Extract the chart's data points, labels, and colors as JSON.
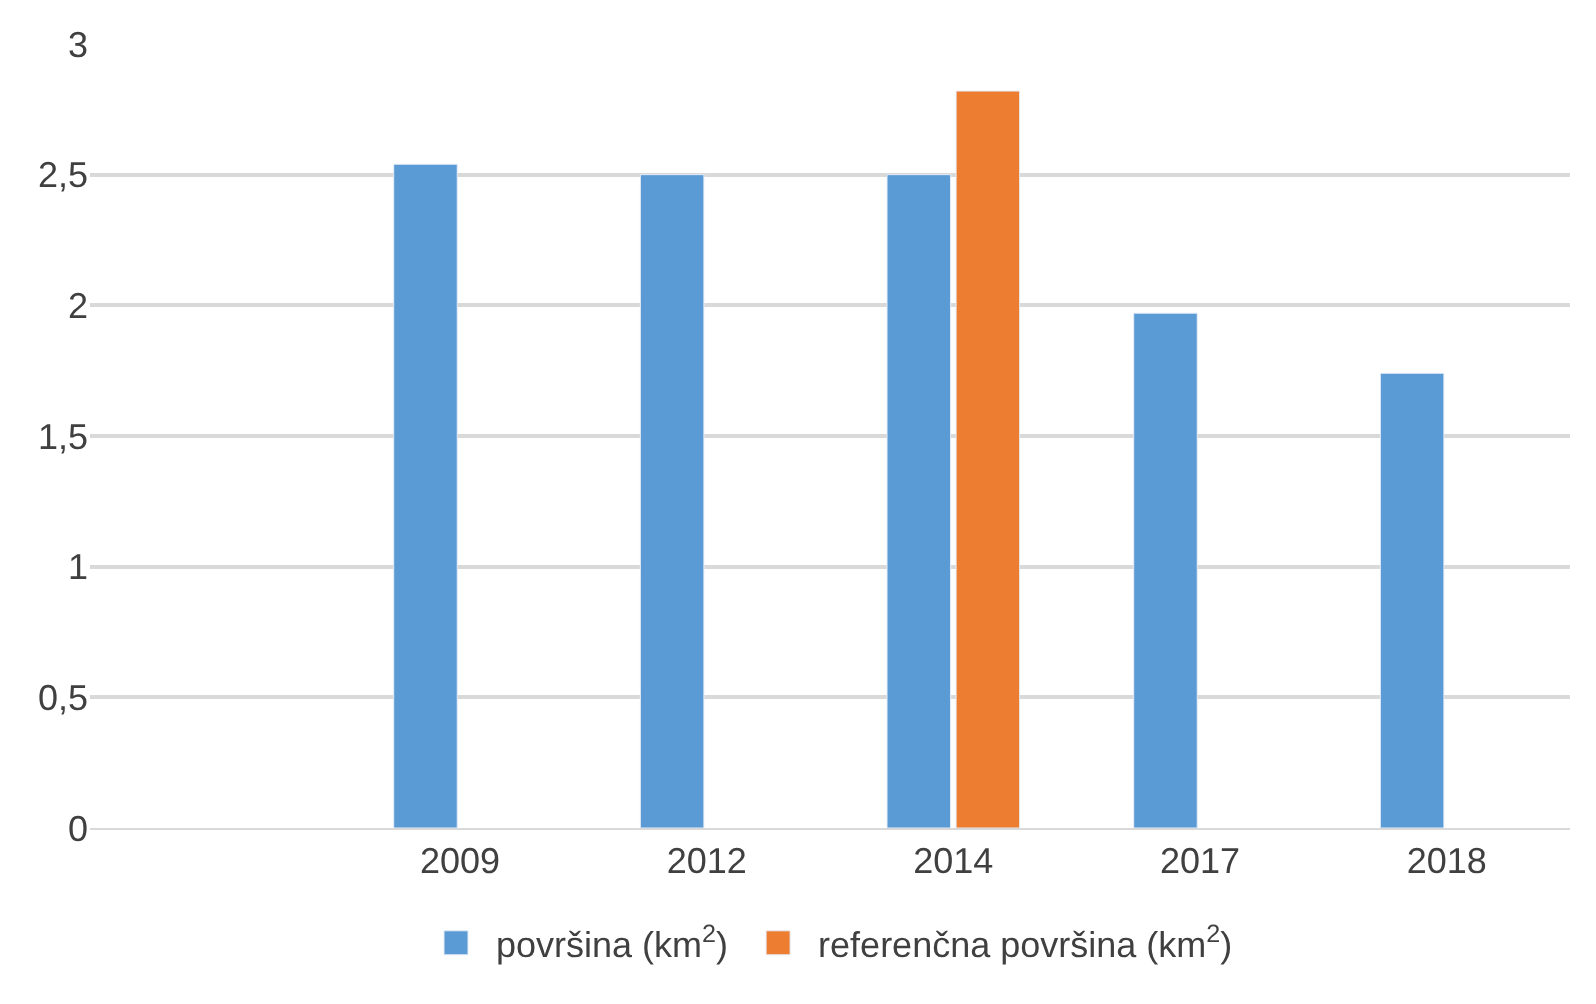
{
  "chart_data": {
    "type": "bar",
    "categories": [
      null,
      "2009",
      "2012",
      "2014",
      "2017",
      "2018"
    ],
    "series": [
      {
        "name": "površina (km$^{2}$)",
        "color": "#5b9bd5",
        "values": [
          null,
          2.54,
          2.5,
          2.5,
          1.97,
          1.74
        ]
      },
      {
        "name": "referenčna površina (km$^{2}$)",
        "color": "#ed7d31",
        "values": [
          null,
          null,
          null,
          2.82,
          null,
          null
        ]
      }
    ],
    "ylim": [
      0,
      3
    ],
    "yticks": [
      0,
      {
        "value": 0.5,
        "label": "0,5"
      },
      1,
      {
        "value": 1.5,
        "label": "1,5"
      },
      2,
      {
        "value": 2.5,
        "label": "2,5"
      },
      3
    ],
    "grid": "y",
    "legend": "bottom"
  }
}
